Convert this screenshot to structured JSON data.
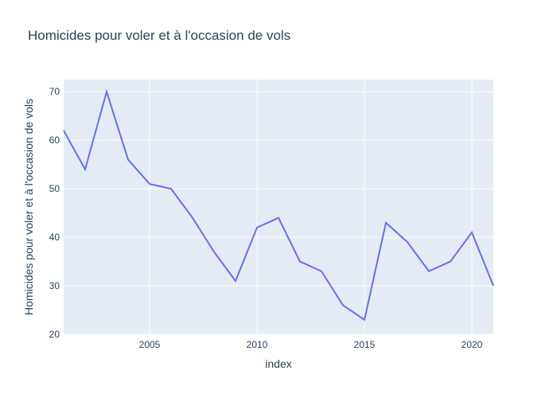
{
  "chart_data": {
    "type": "line",
    "title": "Homicides pour voler et à l'occasion de vols",
    "xlabel": "index",
    "ylabel": "Homicides pour voler et à l'occasion de vols",
    "x": [
      2001,
      2002,
      2003,
      2004,
      2005,
      2006,
      2007,
      2008,
      2009,
      2010,
      2011,
      2012,
      2013,
      2014,
      2015,
      2016,
      2017,
      2018,
      2019,
      2020,
      2021
    ],
    "series": [
      {
        "values": [
          62,
          54,
          70,
          56,
          51,
          50,
          44,
          37,
          31,
          42,
          44,
          35,
          33,
          26,
          23,
          43,
          39,
          33,
          35,
          41,
          30
        ],
        "color": "#636efa"
      }
    ],
    "xlim": [
      2001,
      2021
    ],
    "ylim": [
      20,
      72.5
    ],
    "xticks": [
      "2005",
      "2010",
      "2015",
      "2020"
    ],
    "yticks": [
      "20",
      "30",
      "40",
      "50",
      "60",
      "70"
    ],
    "grid": true,
    "plot_background": "#e5ecf6"
  }
}
